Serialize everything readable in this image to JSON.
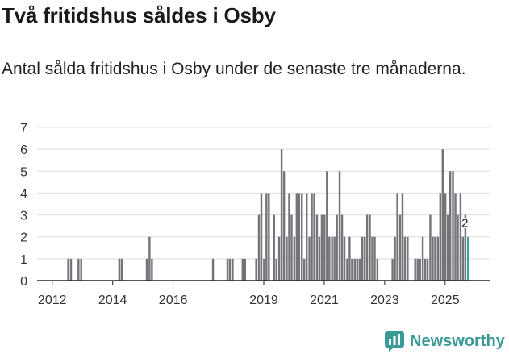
{
  "title": "Två fritidshus såldes i Osby",
  "subtitle": "Antal sålda fritidshus i Osby under de senaste tre månaderna.",
  "brand": {
    "name": "Newsworthy"
  },
  "colors": {
    "bar": "#75737a",
    "highlight": "#2aa79e",
    "grid": "#dddddd",
    "axis": "#222222",
    "brand": "#3a9a96"
  },
  "chart_data": {
    "type": "bar",
    "title": "Två fritidshus såldes i Osby",
    "xlabel": "",
    "ylabel": "",
    "ylim": [
      0,
      7
    ],
    "yticks": [
      "0",
      "1",
      "2",
      "3",
      "4",
      "5",
      "6",
      "7"
    ],
    "xticks": [
      "2012",
      "2014",
      "2016",
      "2019",
      "2021",
      "2023",
      "2025"
    ],
    "x_start_year": 2011.5,
    "x_end_year": 2026.5,
    "annotation": {
      "label": "2",
      "index": 14
    },
    "x": [
      2012.53,
      2012.62,
      2012.87,
      2012.96,
      2014.22,
      2014.3,
      2015.13,
      2015.22,
      2015.3,
      2017.32,
      2017.8,
      2017.88,
      2017.97,
      2018.3,
      2018.38,
      2018.75,
      2018.84,
      2018.92,
      2019.01,
      2019.09,
      2019.17,
      2019.34,
      2019.42,
      2019.51,
      2019.59,
      2019.67,
      2019.76,
      2019.84,
      2019.92,
      2020.01,
      2020.09,
      2020.17,
      2020.26,
      2020.34,
      2020.42,
      2020.51,
      2020.59,
      2020.67,
      2020.76,
      2020.84,
      2020.92,
      2021.01,
      2021.09,
      2021.17,
      2021.26,
      2021.34,
      2021.42,
      2021.51,
      2021.59,
      2021.67,
      2021.76,
      2021.84,
      2021.92,
      2022.01,
      2022.09,
      2022.17,
      2022.26,
      2022.34,
      2022.42,
      2022.51,
      2022.59,
      2022.67,
      2022.76,
      2023.26,
      2023.34,
      2023.42,
      2023.51,
      2023.59,
      2023.67,
      2023.76,
      2024.01,
      2024.09,
      2024.17,
      2024.26,
      2024.34,
      2024.42,
      2024.51,
      2024.59,
      2024.67,
      2024.76,
      2024.84,
      2024.92,
      2025.01,
      2025.09,
      2025.17,
      2025.26,
      2025.34,
      2025.42,
      2025.51,
      2025.59,
      2025.67,
      2025.76
    ],
    "values": [
      1,
      1,
      1,
      1,
      1,
      1,
      1,
      2,
      1,
      1,
      1,
      1,
      1,
      1,
      1,
      1,
      3,
      4,
      1,
      4,
      4,
      3,
      1,
      2,
      6,
      5,
      2,
      4,
      3,
      2,
      4,
      4,
      4,
      1,
      4,
      2,
      4,
      4,
      3,
      2,
      3,
      3,
      5,
      2,
      2,
      2,
      3,
      5,
      3,
      2,
      1,
      2,
      1,
      1,
      1,
      1,
      2,
      2,
      3,
      3,
      2,
      2,
      1,
      1,
      2,
      4,
      3,
      4,
      2,
      2,
      1,
      1,
      1,
      2,
      1,
      1,
      3,
      2,
      2,
      2,
      4,
      6,
      4,
      3,
      5,
      5,
      4,
      3,
      4,
      2,
      3,
      2
    ]
  }
}
